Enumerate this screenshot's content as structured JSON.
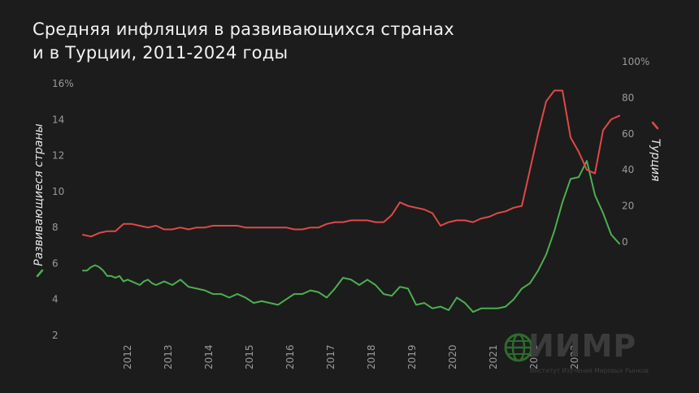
{
  "title_line1": "Средняя инфляция в развивающихся странах",
  "title_line2": "и в Турции, 2011-2024 годы",
  "logo": {
    "name": "ИИМР",
    "subtitle": "Институт Изучения Мировых Рынков"
  },
  "chart_data": {
    "type": "line",
    "title": "Средняя инфляция в развивающихся странах и в Турции, 2011-2024 годы",
    "x_ticks": [
      "2012",
      "2013",
      "2014",
      "2015",
      "2016",
      "2017",
      "2018",
      "2019",
      "2020",
      "2021",
      "2022",
      "2023"
    ],
    "left_axis": {
      "label": "Развивающиеся страны",
      "ticks": [
        "16%",
        "14",
        "12",
        "10",
        "8",
        "6",
        "4",
        "2"
      ],
      "ylim": [
        2,
        16
      ]
    },
    "right_axis": {
      "label": "Турция",
      "ticks": [
        "100%",
        "80",
        "60",
        "40",
        "20",
        "0"
      ],
      "ylim": [
        -20,
        100
      ]
    },
    "grid": false,
    "colors": {
      "emerging": "#4caf50",
      "turkey": "#e04848",
      "background": "#1c1c1c"
    },
    "series": [
      {
        "name": "Развивающиеся страны",
        "axis": "left",
        "x": [
          2011.0,
          2011.1,
          2011.2,
          2011.3,
          2011.4,
          2011.5,
          2011.6,
          2011.7,
          2011.8,
          2011.9,
          2012.0,
          2012.1,
          2012.2,
          2012.3,
          2012.4,
          2012.5,
          2012.6,
          2012.7,
          2012.8,
          2012.9,
          2013.0,
          2013.2,
          2013.4,
          2013.6,
          2013.8,
          2014.0,
          2014.2,
          2014.4,
          2014.6,
          2014.8,
          2015.0,
          2015.2,
          2015.4,
          2015.6,
          2015.8,
          2016.0,
          2016.2,
          2016.4,
          2016.6,
          2016.8,
          2017.0,
          2017.2,
          2017.4,
          2017.6,
          2017.8,
          2018.0,
          2018.2,
          2018.4,
          2018.6,
          2018.8,
          2019.0,
          2019.2,
          2019.4,
          2019.6,
          2019.8,
          2020.0,
          2020.2,
          2020.4,
          2020.6,
          2020.8,
          2021.0,
          2021.2,
          2021.4,
          2021.6,
          2021.8,
          2022.0,
          2022.2,
          2022.4,
          2022.6,
          2022.8,
          2023.0,
          2023.2,
          2023.4,
          2023.6,
          2023.8,
          2024.0,
          2024.2
        ],
        "values": [
          5.6,
          5.6,
          5.8,
          5.9,
          5.8,
          5.6,
          5.3,
          5.3,
          5.2,
          5.3,
          5.0,
          5.1,
          5.0,
          4.9,
          4.8,
          5.0,
          5.1,
          4.9,
          4.8,
          4.9,
          5.0,
          4.8,
          5.1,
          4.7,
          4.6,
          4.5,
          4.3,
          4.3,
          4.1,
          4.3,
          4.1,
          3.8,
          3.9,
          3.8,
          3.7,
          4.0,
          4.3,
          4.3,
          4.5,
          4.4,
          4.1,
          4.6,
          5.2,
          5.1,
          4.8,
          5.1,
          4.8,
          4.3,
          4.2,
          4.7,
          4.6,
          3.7,
          3.8,
          3.5,
          3.6,
          3.4,
          4.1,
          3.8,
          3.3,
          3.5,
          3.5,
          3.5,
          3.6,
          4.0,
          4.6,
          4.9,
          5.6,
          6.5,
          7.8,
          9.4,
          10.7,
          10.8,
          11.7,
          9.8,
          8.8,
          7.6,
          7.1
        ]
      },
      {
        "name": "Турция",
        "axis": "right",
        "x": [
          2011.0,
          2011.2,
          2011.4,
          2011.6,
          2011.8,
          2012.0,
          2012.2,
          2012.4,
          2012.6,
          2012.8,
          2013.0,
          2013.2,
          2013.4,
          2013.6,
          2013.8,
          2014.0,
          2014.2,
          2014.4,
          2014.6,
          2014.8,
          2015.0,
          2015.2,
          2015.4,
          2015.6,
          2015.8,
          2016.0,
          2016.2,
          2016.4,
          2016.6,
          2016.8,
          2017.0,
          2017.2,
          2017.4,
          2017.6,
          2017.8,
          2018.0,
          2018.2,
          2018.4,
          2018.6,
          2018.8,
          2019.0,
          2019.2,
          2019.4,
          2019.6,
          2019.8,
          2020.0,
          2020.2,
          2020.4,
          2020.6,
          2020.8,
          2021.0,
          2021.2,
          2021.4,
          2021.6,
          2021.8,
          2022.0,
          2022.2,
          2022.4,
          2022.6,
          2022.8,
          2023.0,
          2023.2,
          2023.4,
          2023.6,
          2023.8,
          2024.0,
          2024.2
        ],
        "values": [
          4,
          3,
          5,
          6,
          6,
          10,
          10,
          9,
          8,
          9,
          7,
          7,
          8,
          7,
          8,
          8,
          9,
          9,
          9,
          9,
          8,
          8,
          8,
          8,
          8,
          8,
          7,
          7,
          8,
          8,
          10,
          11,
          11,
          12,
          12,
          12,
          11,
          11,
          15,
          22,
          20,
          19,
          18,
          16,
          9,
          11,
          12,
          12,
          11,
          13,
          14,
          16,
          17,
          19,
          20,
          40,
          60,
          78,
          84,
          84,
          58,
          50,
          40,
          38,
          62,
          68,
          70
        ]
      }
    ]
  }
}
